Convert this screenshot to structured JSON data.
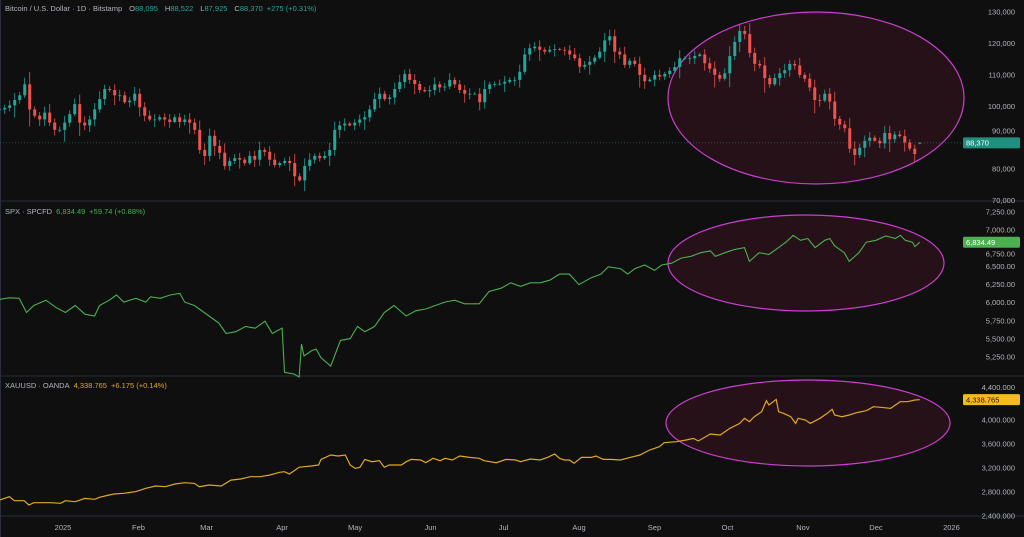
{
  "legends": {
    "btc": {
      "symbol": "Bitcoin / U.S. Dollar · 1D · Bitstamp",
      "o_label": "O",
      "open": "88,095",
      "h_label": "H",
      "high": "88,522",
      "l_label": "L",
      "low": "87,925",
      "c_label": "C",
      "close": "88,370",
      "change": "+275 (+0.31%)"
    },
    "spx": {
      "symbol": "SPX · SPCFD",
      "last": "6,834.49",
      "change": "+59.74 (+0.88%)"
    },
    "gold": {
      "symbol": "XAUUSD · OANDA",
      "last": "4,338.765",
      "change": "+6.175 (+0.14%)"
    }
  },
  "colors": {
    "up": "#26a69a",
    "down": "#ef5350",
    "spx": "#4caf50",
    "gold": "#e0a823",
    "annotation": "#c93fcf",
    "btc_label": "#1f8f80"
  },
  "time_axis": [
    {
      "label": "2025",
      "day": 0
    },
    {
      "label": "Feb",
      "day": 31
    },
    {
      "label": "Mar",
      "day": 59
    },
    {
      "label": "Apr",
      "day": 90
    },
    {
      "label": "May",
      "day": 120
    },
    {
      "label": "Jun",
      "day": 151
    },
    {
      "label": "Jul",
      "day": 181
    },
    {
      "label": "Aug",
      "day": 212
    },
    {
      "label": "Sep",
      "day": 243
    },
    {
      "label": "Oct",
      "day": 273
    },
    {
      "label": "Nov",
      "day": 304
    },
    {
      "label": "Dec",
      "day": 334
    },
    {
      "label": "2026",
      "day": 365
    }
  ],
  "chart_data": [
    {
      "type": "candlestick",
      "title": "Bitcoin / U.S. Dollar · 1D · Bitstamp",
      "x_unit": "days since 2025-01-01",
      "start_day": -26,
      "end_day": 352,
      "closes": [
        99000,
        99500,
        100300,
        102000,
        103500,
        107000,
        99000,
        97000,
        95800,
        98000,
        94800,
        92500,
        92500,
        94800,
        97500,
        100700,
        94800,
        93900,
        95800,
        99000,
        102300,
        105500,
        105200,
        103500,
        103500,
        101300,
        101800,
        104000,
        99700,
        97000,
        95800,
        95800,
        96500,
        95800,
        95000,
        96500,
        95000,
        95800,
        94800,
        92500,
        86100,
        84200,
        90600,
        87400,
        85200,
        81000,
        82600,
        83500,
        83000,
        81900,
        84200,
        83000,
        86100,
        85500,
        83000,
        81300,
        81900,
        82600,
        81900,
        77700,
        76400,
        81000,
        83000,
        84200,
        83500,
        84200,
        86100,
        92500,
        93900,
        94500,
        93900,
        94800,
        95800,
        96500,
        99000,
        102300,
        104000,
        102300,
        102800,
        105500,
        107700,
        110300,
        108400,
        107100,
        105200,
        104800,
        105200,
        107000,
        106000,
        106300,
        108400,
        107000,
        105200,
        104000,
        104000,
        104000,
        101300,
        105500,
        107000,
        107100,
        107200,
        107800,
        108400,
        108400,
        111000,
        116500,
        118500,
        119000,
        118000,
        117400,
        118000,
        118200,
        118000,
        117800,
        116500,
        115300,
        112600,
        113200,
        114200,
        115500,
        117400,
        121000,
        122300,
        117400,
        116500,
        113200,
        114500,
        113500,
        110000,
        108000,
        108500,
        110000,
        109500,
        110300,
        111300,
        112500,
        115300,
        115300,
        115300,
        116000,
        116500,
        113700,
        112000,
        110000,
        108800,
        110500,
        116000,
        120500,
        124000,
        123000,
        117000,
        113500,
        113000,
        109000,
        107000,
        109000,
        110500,
        111500,
        113500,
        113000,
        110000,
        108800,
        106000,
        102000,
        101800,
        104000,
        101500,
        96000,
        94200,
        93000,
        86500,
        84500,
        86800,
        89000,
        90000,
        89000,
        88200,
        91500,
        89500,
        91000,
        90500,
        88500,
        86500,
        84800,
        88370
      ],
      "last_candle": {
        "open": 88095,
        "high": 88522,
        "low": 87925,
        "close": 88370
      },
      "last_price_label": "88,370",
      "y_ticks": [
        {
          "label": "130,000",
          "value": 130000
        },
        {
          "label": "120,000",
          "value": 120000
        },
        {
          "label": "110,000",
          "value": 110000
        },
        {
          "label": "100,000",
          "value": 100000
        },
        {
          "label": "90,000",
          "value": 90000
        },
        {
          "label": "80,000",
          "value": 80000
        },
        {
          "label": "70,000",
          "value": 70000
        }
      ],
      "ylim": [
        70000,
        130000
      ]
    },
    {
      "type": "line",
      "title": "SPX · SPCFD",
      "x_unit": "days since 2025-01-01",
      "points": [
        [
          -26,
          6045
        ],
        [
          -22,
          6067
        ],
        [
          -18,
          6060
        ],
        [
          -15,
          5865
        ],
        [
          -12,
          5962
        ],
        [
          -7,
          6035
        ],
        [
          -3,
          5937
        ],
        [
          1,
          5865
        ],
        [
          5,
          5962
        ],
        [
          9,
          5841
        ],
        [
          13,
          5817
        ],
        [
          15,
          5962
        ],
        [
          19,
          6035
        ],
        [
          22,
          6106
        ],
        [
          25,
          6008
        ],
        [
          30,
          6060
        ],
        [
          34,
          6008
        ],
        [
          36,
          6082
        ],
        [
          40,
          6060
        ],
        [
          44,
          6106
        ],
        [
          48,
          6130
        ],
        [
          50,
          6008
        ],
        [
          54,
          5962
        ],
        [
          56,
          5913
        ],
        [
          60,
          5817
        ],
        [
          64,
          5720
        ],
        [
          67,
          5575
        ],
        [
          71,
          5600
        ],
        [
          75,
          5673
        ],
        [
          79,
          5648
        ],
        [
          83,
          5745
        ],
        [
          86,
          5575
        ],
        [
          90,
          5648
        ],
        [
          91,
          5040
        ],
        [
          95,
          5015
        ],
        [
          97,
          4975
        ],
        [
          98,
          5430
        ],
        [
          99,
          5265
        ],
        [
          102,
          5335
        ],
        [
          104,
          5360
        ],
        [
          106,
          5240
        ],
        [
          110,
          5125
        ],
        [
          114,
          5480
        ],
        [
          118,
          5505
        ],
        [
          121,
          5673
        ],
        [
          124,
          5600
        ],
        [
          128,
          5673
        ],
        [
          132,
          5865
        ],
        [
          136,
          5962
        ],
        [
          141,
          5817
        ],
        [
          145,
          5890
        ],
        [
          149,
          5913
        ],
        [
          153,
          5962
        ],
        [
          157,
          6010
        ],
        [
          161,
          6035
        ],
        [
          165,
          5985
        ],
        [
          169,
          5985
        ],
        [
          171,
          5985
        ],
        [
          175,
          6155
        ],
        [
          180,
          6200
        ],
        [
          184,
          6275
        ],
        [
          188,
          6225
        ],
        [
          192,
          6275
        ],
        [
          196,
          6275
        ],
        [
          200,
          6310
        ],
        [
          204,
          6395
        ],
        [
          208,
          6395
        ],
        [
          212,
          6250
        ],
        [
          217,
          6345
        ],
        [
          221,
          6395
        ],
        [
          224,
          6495
        ],
        [
          229,
          6470
        ],
        [
          232,
          6395
        ],
        [
          235,
          6470
        ],
        [
          239,
          6520
        ],
        [
          243,
          6445
        ],
        [
          246,
          6520
        ],
        [
          250,
          6545
        ],
        [
          254,
          6615
        ],
        [
          258,
          6640
        ],
        [
          262,
          6690
        ],
        [
          266,
          6715
        ],
        [
          268,
          6640
        ],
        [
          272,
          6690
        ],
        [
          276,
          6735
        ],
        [
          280,
          6760
        ],
        [
          282,
          6570
        ],
        [
          286,
          6690
        ],
        [
          290,
          6665
        ],
        [
          294,
          6760
        ],
        [
          297,
          6835
        ],
        [
          300,
          6930
        ],
        [
          303,
          6860
        ],
        [
          306,
          6885
        ],
        [
          309,
          6760
        ],
        [
          313,
          6860
        ],
        [
          315,
          6885
        ],
        [
          317,
          6785
        ],
        [
          321,
          6690
        ],
        [
          323,
          6570
        ],
        [
          327,
          6690
        ],
        [
          330,
          6835
        ],
        [
          334,
          6860
        ],
        [
          338,
          6920
        ],
        [
          342,
          6885
        ],
        [
          344,
          6930
        ],
        [
          346,
          6860
        ],
        [
          349,
          6835
        ],
        [
          350,
          6775
        ],
        [
          352,
          6834.49
        ]
      ],
      "last_price_label": "6,834.49",
      "y_ticks": [
        {
          "label": "7,250.00",
          "value": 7250
        },
        {
          "label": "7,000.00",
          "value": 7000
        },
        {
          "label": "6,750.00",
          "value": 6750
        },
        {
          "label": "6,500.00",
          "value": 6500
        },
        {
          "label": "6,250.00",
          "value": 6250
        },
        {
          "label": "6,000.00",
          "value": 6000
        },
        {
          "label": "5,750.00",
          "value": 5750
        },
        {
          "label": "5,500.00",
          "value": 5500
        },
        {
          "label": "5,250.00",
          "value": 5250
        }
      ],
      "ylim": [
        4950,
        7300
      ]
    },
    {
      "type": "line",
      "title": "XAUUSD · OANDA",
      "x_unit": "days since 2025-01-01",
      "points": [
        [
          -26,
          2667
        ],
        [
          -22,
          2722
        ],
        [
          -20,
          2655
        ],
        [
          -16,
          2655
        ],
        [
          -14,
          2583
        ],
        [
          -12,
          2622
        ],
        [
          -5,
          2622
        ],
        [
          -1,
          2611
        ],
        [
          1,
          2655
        ],
        [
          5,
          2639
        ],
        [
          9,
          2694
        ],
        [
          13,
          2678
        ],
        [
          15,
          2711
        ],
        [
          19,
          2750
        ],
        [
          21,
          2767
        ],
        [
          25,
          2778
        ],
        [
          30,
          2806
        ],
        [
          34,
          2861
        ],
        [
          38,
          2900
        ],
        [
          42,
          2889
        ],
        [
          46,
          2933
        ],
        [
          50,
          2955
        ],
        [
          54,
          2944
        ],
        [
          56,
          2889
        ],
        [
          60,
          2917
        ],
        [
          65,
          2900
        ],
        [
          69,
          2999
        ],
        [
          73,
          3016
        ],
        [
          77,
          3055
        ],
        [
          81,
          3055
        ],
        [
          85,
          3083
        ],
        [
          89,
          3128
        ],
        [
          91,
          3139
        ],
        [
          93,
          3100
        ],
        [
          97,
          3211
        ],
        [
          99,
          3222
        ],
        [
          102,
          3233
        ],
        [
          105,
          3250
        ],
        [
          106,
          3344
        ],
        [
          110,
          3416
        ],
        [
          113,
          3400
        ],
        [
          116,
          3416
        ],
        [
          118,
          3250
        ],
        [
          120,
          3194
        ],
        [
          122,
          3211
        ],
        [
          124,
          3344
        ],
        [
          127,
          3305
        ],
        [
          130,
          3322
        ],
        [
          132,
          3211
        ],
        [
          134,
          3250
        ],
        [
          139,
          3250
        ],
        [
          141,
          3305
        ],
        [
          143,
          3344
        ],
        [
          147,
          3333
        ],
        [
          149,
          3288
        ],
        [
          152,
          3361
        ],
        [
          155,
          3322
        ],
        [
          157,
          3361
        ],
        [
          160,
          3333
        ],
        [
          163,
          3400
        ],
        [
          167,
          3377
        ],
        [
          171,
          3361
        ],
        [
          173,
          3322
        ],
        [
          178,
          3288
        ],
        [
          182,
          3344
        ],
        [
          186,
          3333
        ],
        [
          188,
          3305
        ],
        [
          192,
          3350
        ],
        [
          196,
          3333
        ],
        [
          199,
          3377
        ],
        [
          202,
          3433
        ],
        [
          204,
          3361
        ],
        [
          206,
          3333
        ],
        [
          208,
          3333
        ],
        [
          210,
          3278
        ],
        [
          213,
          3377
        ],
        [
          217,
          3377
        ],
        [
          219,
          3400
        ],
        [
          222,
          3344
        ],
        [
          225,
          3344
        ],
        [
          229,
          3333
        ],
        [
          233,
          3377
        ],
        [
          237,
          3416
        ],
        [
          241,
          3500
        ],
        [
          245,
          3555
        ],
        [
          247,
          3622
        ],
        [
          252,
          3639
        ],
        [
          256,
          3666
        ],
        [
          259,
          3694
        ],
        [
          261,
          3650
        ],
        [
          266,
          3766
        ],
        [
          270,
          3750
        ],
        [
          274,
          3861
        ],
        [
          278,
          3944
        ],
        [
          280,
          4028
        ],
        [
          282,
          3972
        ],
        [
          284,
          4055
        ],
        [
          287,
          4139
        ],
        [
          289,
          4322
        ],
        [
          290,
          4250
        ],
        [
          293,
          4344
        ],
        [
          294,
          4139
        ],
        [
          296,
          4111
        ],
        [
          299,
          4055
        ],
        [
          301,
          3944
        ],
        [
          302,
          4028
        ],
        [
          305,
          4000
        ],
        [
          307,
          3944
        ],
        [
          311,
          4028
        ],
        [
          314,
          4111
        ],
        [
          316,
          4178
        ],
        [
          317,
          4083
        ],
        [
          320,
          4055
        ],
        [
          323,
          4083
        ],
        [
          326,
          4122
        ],
        [
          330,
          4155
        ],
        [
          333,
          4222
        ],
        [
          336,
          4211
        ],
        [
          340,
          4194
        ],
        [
          342,
          4250
        ],
        [
          344,
          4305
        ],
        [
          347,
          4305
        ],
        [
          350,
          4333
        ],
        [
          352,
          4338.765
        ]
      ],
      "last_price_label": "4,338.765",
      "y_ticks": [
        {
          "label": "4,400.000",
          "value": 4400
        },
        {
          "label": "4,000.000",
          "value": 4000
        },
        {
          "label": "3,600.000",
          "value": 3600
        },
        {
          "label": "3,200.000",
          "value": 3200
        },
        {
          "label": "2,800.000",
          "value": 2800
        },
        {
          "label": "2,400.000",
          "value": 2400
        }
      ],
      "ylim": [
        2400,
        4450
      ]
    }
  ]
}
